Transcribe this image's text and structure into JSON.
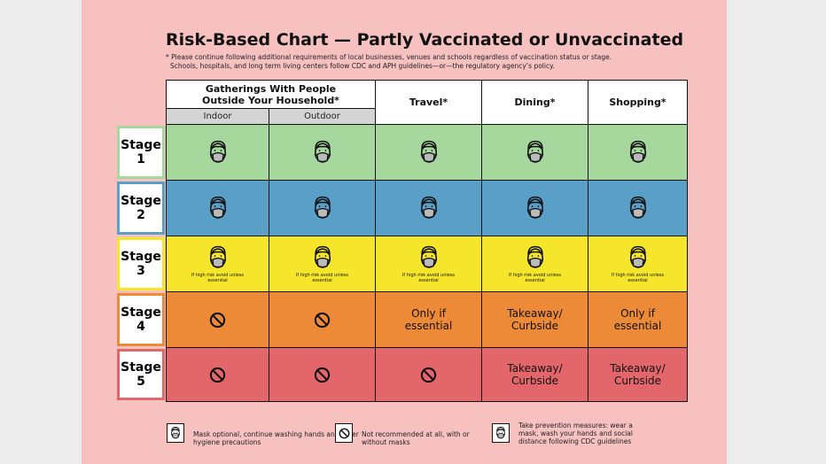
{
  "header": {
    "title": "Risk-Based Chart — Partly Vaccinated or Unvaccinated",
    "notes": [
      "* Please continue following additional requirements of local businesses, venues and schools regardless of vaccination status or stage.",
      "Schools, hospitals, and long term living centers follow CDC and APH guidelines—or—the regulatory agency’s policy."
    ]
  },
  "table": {
    "group_header": "Gatherings With People Outside Your Household*",
    "subheaders": [
      "Indoor",
      "Outdoor"
    ],
    "columns": [
      "Travel*",
      "Dining*",
      "Shopping*"
    ],
    "rows": [
      {
        "stage": "Stage",
        "number": "1"
      },
      {
        "stage": "Stage",
        "number": "2"
      },
      {
        "stage": "Stage",
        "number": "3",
        "notes": [
          "If high risk avoid unless essential",
          "If high risk avoid unless essential",
          "If high risk avoid unless essential",
          "If high risk avoid unless essential",
          "If high risk avoid unless essential"
        ]
      },
      {
        "stage": "Stage",
        "number": "4",
        "text": {
          "travel": "Only if essential",
          "dining": "Takeaway/ Curbside",
          "shopping": "Only if essential"
        }
      },
      {
        "stage": "Stage",
        "number": "5",
        "text": {
          "dining": "Takeaway/ Curbside",
          "shopping": "Takeaway/ Curbside"
        }
      }
    ]
  },
  "legend": [
    "Mask optional, continue washing hands and other hygiene precautions",
    "Not recommended at all, with or without masks",
    "Take prevention measures: wear a mask, wash your hands and social distance following CDC guidelines"
  ]
}
